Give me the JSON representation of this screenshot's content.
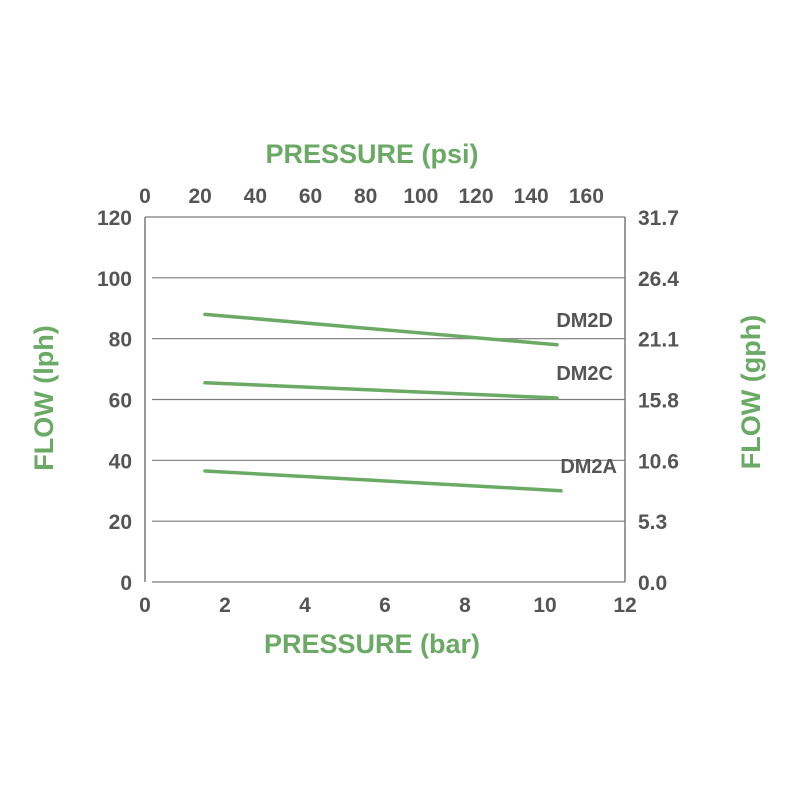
{
  "chart_data": {
    "type": "line",
    "title": "",
    "x_bottom": {
      "label": "PRESSURE (bar)",
      "range": [
        0,
        12
      ],
      "ticks": [
        "0",
        "2",
        "4",
        "6",
        "8",
        "10",
        "12"
      ]
    },
    "x_top": {
      "label": "PRESSURE (psi)",
      "range": [
        0,
        174
      ],
      "ticks": [
        "0",
        "20",
        "40",
        "60",
        "80",
        "100",
        "120",
        "140",
        "160"
      ]
    },
    "y_left": {
      "label": "FLOW (lph)",
      "range": [
        0,
        120
      ],
      "ticks": [
        "0",
        "20",
        "40",
        "60",
        "80",
        "100",
        "120"
      ]
    },
    "y_right": {
      "label": "FLOW (gph)",
      "range": [
        0,
        31.7
      ],
      "ticks": [
        "0.0",
        "5.3",
        "10.6",
        "15.8",
        "21.1",
        "26.4",
        "31.7"
      ]
    },
    "grid": "horizontal",
    "series": [
      {
        "name": "DM2D",
        "x": [
          1.5,
          10.3
        ],
        "y": [
          88,
          78
        ]
      },
      {
        "name": "DM2C",
        "x": [
          1.5,
          10.3
        ],
        "y": [
          65.5,
          60.5
        ]
      },
      {
        "name": "DM2A",
        "x": [
          1.5,
          10.4
        ],
        "y": [
          36.5,
          30
        ]
      }
    ],
    "colors": {
      "series": "#6aaa64",
      "titles": "#6aaa64",
      "ticks": "#555555",
      "grid": "#7a7a7a"
    }
  }
}
